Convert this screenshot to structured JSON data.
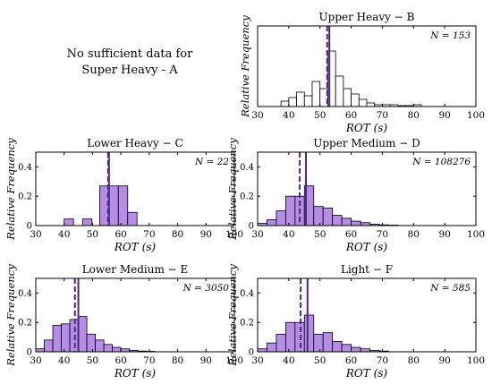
{
  "note_lines": [
    "No sufficient data for",
    "Super Heavy - A"
  ],
  "style": {
    "fill_colors": {
      "white": "#ffffff",
      "purple": "#b58ce6"
    },
    "mean_line_color": "#4a2a7a"
  },
  "chart_data": [
    {
      "type": "bar",
      "title": "Upper Heavy  −  B",
      "n_label": "N = 153",
      "fill": "white",
      "xlabel": "ROT  (s)",
      "ylabel": "Relative Frequency",
      "xlim": [
        30,
        100
      ],
      "xticks": [
        "30",
        "40",
        "50",
        "60",
        "70",
        "80",
        "90",
        "100"
      ],
      "ylim": [
        0,
        0.45
      ],
      "yticks": [],
      "bin_width": 2.5,
      "bin_starts": [
        37.5,
        40,
        42.5,
        45,
        47.5,
        50,
        52.5,
        55,
        57.5,
        60,
        62.5,
        65,
        67.5,
        70,
        72.5,
        75,
        77.5,
        80
      ],
      "values": [
        0.03,
        0.05,
        0.08,
        0.06,
        0.14,
        0.1,
        0.31,
        0.17,
        0.1,
        0.07,
        0.04,
        0.02,
        0.01,
        0.01,
        0.01,
        0.005,
        0.005,
        0.01
      ],
      "mean_solid": 53,
      "mean_dashed": 52.3
    },
    {
      "type": "bar",
      "title": "Lower Heavy  −  C",
      "n_label": "N = 22",
      "fill": "purple",
      "xlabel": "ROT  (s)",
      "ylabel": "Relative Frequency",
      "xlim": [
        30,
        100
      ],
      "xticks": [
        "30",
        "40",
        "50",
        "60",
        "70",
        "80",
        "90",
        "100"
      ],
      "ylim": [
        0,
        0.5
      ],
      "yticks": [
        "0",
        "0.2",
        "0.4"
      ],
      "bin_width": 3.3,
      "bin_starts": [
        40,
        46.5,
        52.5,
        55.8,
        59.1,
        62.4
      ],
      "values": [
        0.045,
        0.045,
        0.27,
        0.27,
        0.27,
        0.09
      ],
      "mean_solid": 55.8,
      "mean_dashed": 55.5
    },
    {
      "type": "bar",
      "title": "Upper Medium  −  D",
      "n_label": "N = 108276",
      "fill": "purple",
      "xlabel": "ROT  (s)",
      "ylabel": "Relative Frequency",
      "xlim": [
        30,
        100
      ],
      "xticks": [
        "30",
        "40",
        "50",
        "60",
        "70",
        "80",
        "90",
        "100"
      ],
      "ylim": [
        0,
        0.5
      ],
      "yticks": [
        "0",
        "0.2",
        "0.4"
      ],
      "bin_width": 3,
      "bin_starts": [
        30,
        33,
        36,
        39,
        42,
        45,
        48,
        51,
        54,
        57,
        60,
        63,
        66,
        69,
        72
      ],
      "values": [
        0.015,
        0.04,
        0.1,
        0.2,
        0.2,
        0.27,
        0.13,
        0.12,
        0.07,
        0.05,
        0.03,
        0.02,
        0.01,
        0.005,
        0.003
      ],
      "mean_solid": 45.5,
      "mean_dashed": 43.5
    },
    {
      "type": "bar",
      "title": "Lower Medium  −  E",
      "n_label": "N = 3050",
      "fill": "purple",
      "xlabel": "ROT  (s)",
      "ylabel": "Relative Frequency",
      "xlim": [
        30,
        100
      ],
      "xticks": [
        "30",
        "40",
        "50",
        "60",
        "70",
        "80",
        "90",
        "100"
      ],
      "ylim": [
        0,
        0.5
      ],
      "yticks": [
        "0",
        "0.2",
        "0.4"
      ],
      "bin_width": 3,
      "bin_starts": [
        30,
        33,
        36,
        39,
        42,
        45,
        48,
        51,
        54,
        57,
        60,
        63,
        66,
        69
      ],
      "values": [
        0.02,
        0.08,
        0.18,
        0.19,
        0.22,
        0.24,
        0.12,
        0.08,
        0.05,
        0.03,
        0.02,
        0.01,
        0.005,
        0.003
      ],
      "mean_solid": 45,
      "mean_dashed": 43.8
    },
    {
      "type": "bar",
      "title": "Light  −  F",
      "n_label": "N = 585",
      "fill": "purple",
      "xlabel": "ROT  (s)",
      "ylabel": "Relative Frequency",
      "xlim": [
        30,
        100
      ],
      "xticks": [
        "30",
        "40",
        "50",
        "60",
        "70",
        "80",
        "90",
        "100"
      ],
      "ylim": [
        0,
        0.5
      ],
      "yticks": [
        "0",
        "0.2",
        "0.4"
      ],
      "bin_width": 3,
      "bin_starts": [
        30,
        33,
        36,
        39,
        42,
        45,
        48,
        51,
        54,
        57,
        60,
        63,
        66,
        69
      ],
      "values": [
        0.02,
        0.06,
        0.12,
        0.2,
        0.2,
        0.25,
        0.12,
        0.13,
        0.07,
        0.05,
        0.03,
        0.02,
        0.01,
        0.005
      ],
      "mean_solid": 46,
      "mean_dashed": 43.8
    }
  ]
}
